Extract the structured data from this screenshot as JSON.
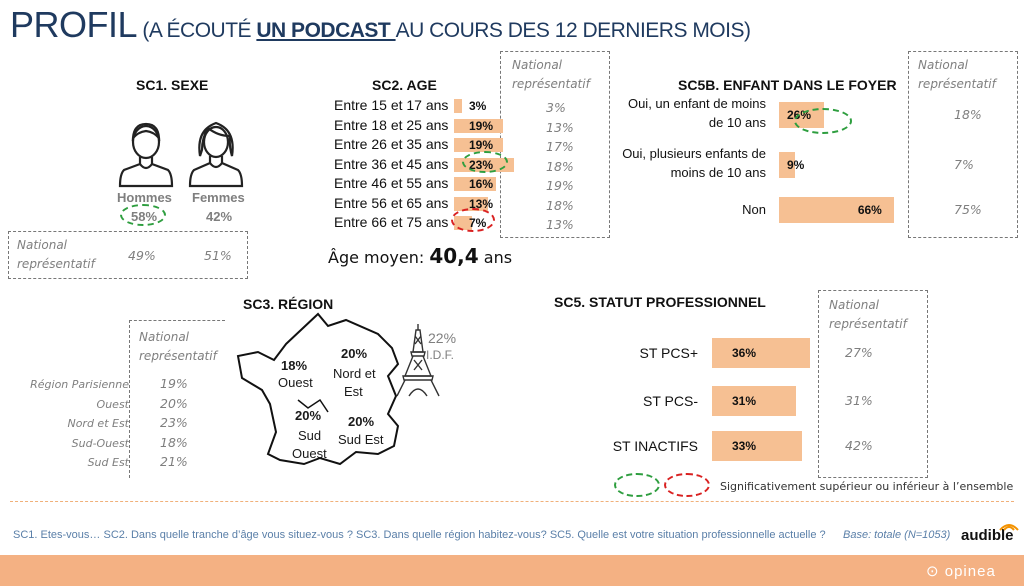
{
  "title": {
    "main": "PROFIL",
    "prefix": " (A ÉCOUTÉ ",
    "highlight": "UN PODCAST ",
    "suffix": "AU COURS DES 12 DERNIERS MOIS)"
  },
  "national_label": "National représentatif",
  "sexe": {
    "title": "SC1. SEXE",
    "labels": [
      "Hommes",
      "Femmes"
    ],
    "values": [
      "58%",
      "42%"
    ],
    "national": [
      "49%",
      "51%"
    ]
  },
  "age": {
    "title": "SC2. AGE",
    "mean_label": "Âge moyen: ",
    "mean_value": "40,4",
    "mean_unit": " ans",
    "rows": [
      {
        "label": "Entre 15 et 17 ans",
        "value": "3%",
        "national": "3%"
      },
      {
        "label": "Entre 18 et 25 ans",
        "value": "19%",
        "national": "13%"
      },
      {
        "label": "Entre 26 et 35 ans",
        "value": "19%",
        "national": "17%"
      },
      {
        "label": "Entre 36 et 45 ans",
        "value": "23%",
        "national": "18%"
      },
      {
        "label": "Entre 46 et 55 ans",
        "value": "16%",
        "national": "19%"
      },
      {
        "label": "Entre 56 et 65 ans",
        "value": "13%",
        "national": "18%"
      },
      {
        "label": "Entre 66 et 75 ans",
        "value": "7%",
        "national": "13%"
      }
    ]
  },
  "enfant": {
    "title": "SC5B. ENFANT DANS LE FOYER",
    "rows": [
      {
        "label": "Oui, un enfant de moins de 10 ans",
        "value": "26%",
        "national": "18%"
      },
      {
        "label": "Oui, plusieurs enfants de moins de 10 ans",
        "value": "9%",
        "national": "7%"
      },
      {
        "label": "Non",
        "value": "66%",
        "national": "75%"
      }
    ]
  },
  "region": {
    "title": "SC3. RÉGION",
    "national": [
      {
        "label": "Région Parisienne",
        "value": "19%"
      },
      {
        "label": "Ouest",
        "value": "20%"
      },
      {
        "label": "Nord et Est",
        "value": "23%"
      },
      {
        "label": "Sud-Ouest",
        "value": "18%"
      },
      {
        "label": "Sud Est",
        "value": "21%"
      }
    ],
    "map": {
      "ouest": {
        "value": "18%",
        "name": "Ouest"
      },
      "nord_est": {
        "value": "20%",
        "name1": "Nord et",
        "name2": "Est"
      },
      "sud_ouest": {
        "value": "20%",
        "name1": "Sud",
        "name2": "Ouest"
      },
      "sud_est": {
        "value": "20%",
        "name": "Sud Est"
      },
      "idf": {
        "value": "22%",
        "name": "I.D.F."
      }
    }
  },
  "statut": {
    "title": "SC5. STATUT PROFESSIONNEL",
    "rows": [
      {
        "label": "ST PCS+",
        "value": "36%",
        "national": "27%"
      },
      {
        "label": "ST PCS-",
        "value": "31%",
        "national": "31%"
      },
      {
        "label": "ST INACTIFS",
        "value": "33%",
        "national": "42%"
      }
    ]
  },
  "legend": {
    "text": "Significativement supérieur ou inférieur à l’ensemble"
  },
  "footer": {
    "questions": "SC1. Etes-vous… SC2. Dans quelle tranche d’âge vous situez-vous ? SC3. Dans quelle région habitez-vous? SC5. Quelle est votre situation professionnelle actuelle ?",
    "base": "Base: totale (N=1053)"
  },
  "brand": {
    "audible": "audible",
    "opinea": "opinea"
  },
  "colors": {
    "bar": "#f6c093",
    "sig_up": "#2e9e3f",
    "sig_down": "#d92121",
    "title": "#1f3a5f",
    "band": "#f4b183"
  },
  "chart_data": [
    {
      "type": "bar",
      "title": "SC1. SEXE",
      "categories": [
        "Hommes",
        "Femmes"
      ],
      "values": [
        58,
        42
      ],
      "national": [
        49,
        51
      ]
    },
    {
      "type": "bar",
      "title": "SC2. AGE",
      "categories": [
        "Entre 15 et 17 ans",
        "Entre 18 et 25 ans",
        "Entre 26 et 35 ans",
        "Entre 36 et 45 ans",
        "Entre 46 et 55 ans",
        "Entre 56 et 65 ans",
        "Entre 66 et 75 ans"
      ],
      "values": [
        3,
        19,
        19,
        23,
        16,
        13,
        7
      ],
      "national": [
        3,
        13,
        17,
        18,
        19,
        18,
        13
      ]
    },
    {
      "type": "bar",
      "title": "SC5B. ENFANT DANS LE FOYER",
      "categories": [
        "Oui, un enfant de moins de 10 ans",
        "Oui, plusieurs enfants de moins de 10 ans",
        "Non"
      ],
      "values": [
        26,
        9,
        66
      ],
      "national": [
        18,
        7,
        75
      ]
    },
    {
      "type": "table",
      "title": "SC3. RÉGION",
      "categories": [
        "Ouest",
        "Nord et Est",
        "Sud Ouest",
        "Sud Est",
        "I.D.F."
      ],
      "values": [
        18,
        20,
        20,
        20,
        22
      ],
      "national": [
        20,
        23,
        18,
        21,
        19
      ]
    },
    {
      "type": "bar",
      "title": "SC5. STATUT PROFESSIONNEL",
      "categories": [
        "ST PCS+",
        "ST PCS-",
        "ST INACTIFS"
      ],
      "values": [
        36,
        31,
        33
      ],
      "national": [
        27,
        31,
        42
      ]
    }
  ]
}
